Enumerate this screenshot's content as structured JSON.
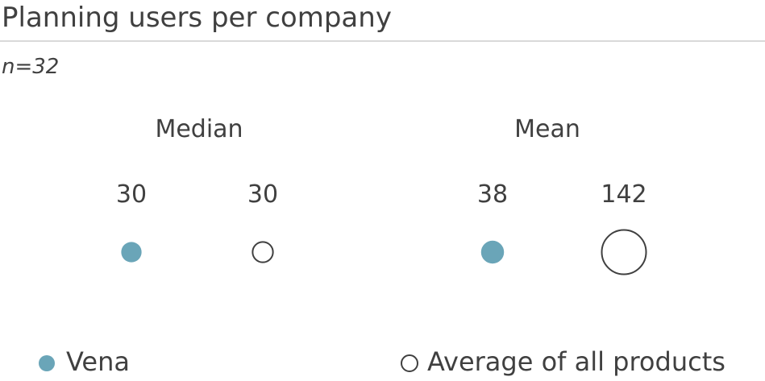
{
  "title": "Planning users per company",
  "subtitle": "n=32",
  "colors": {
    "vena": "#6aa5b8",
    "average_stroke": "#404040",
    "text": "#404040"
  },
  "chart_data": {
    "type": "scatter",
    "title": "Planning users per company",
    "subtitle": "n=32",
    "groups": [
      "Median",
      "Mean"
    ],
    "series": [
      {
        "name": "Vena",
        "values": [
          30,
          38
        ],
        "style": "filled"
      },
      {
        "name": "Average of all products",
        "values": [
          30,
          142
        ],
        "style": "hollow"
      }
    ],
    "encoding": "circle area proportional to value",
    "legend": "bottom",
    "grid": false
  }
}
